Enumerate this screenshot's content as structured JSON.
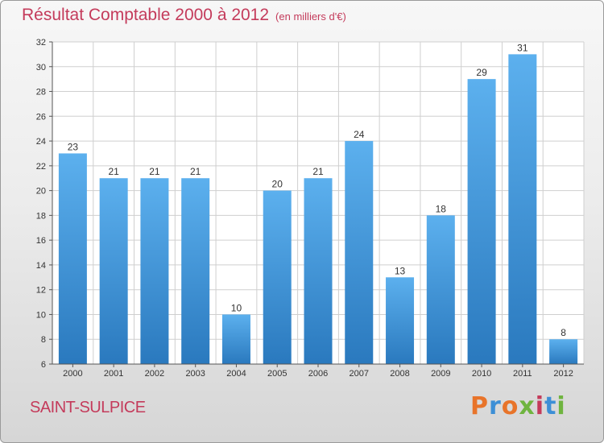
{
  "header": {
    "title": "Résultat Comptable 2000 à 2012",
    "subtitle": "(en milliers d'€)"
  },
  "footer": {
    "commune": "SAINT-SULPICE",
    "logo_text": "Proxiti",
    "logo_colors": [
      "#e8742a",
      "#3d8fd6",
      "#e8742a",
      "#6fb43f",
      "#c43b5b",
      "#3d8fd6",
      "#6fb43f"
    ]
  },
  "colors": {
    "bar_top": "#5cb0ee",
    "bar_bottom": "#2a79be",
    "title": "#c43b5b",
    "axis": "#555555",
    "grid": "#cfcfcf"
  },
  "chart_data": {
    "type": "bar",
    "categories": [
      "2000",
      "2001",
      "2002",
      "2003",
      "2004",
      "2005",
      "2006",
      "2007",
      "2008",
      "2009",
      "2010",
      "2011",
      "2012"
    ],
    "values": [
      23,
      21,
      21,
      21,
      10,
      20,
      21,
      24,
      13,
      18,
      29,
      31,
      8
    ],
    "ylim": [
      6,
      32
    ],
    "yticks": [
      6,
      8,
      10,
      12,
      14,
      16,
      18,
      20,
      22,
      24,
      26,
      28,
      30,
      32
    ],
    "grid": true,
    "data_labels": true
  }
}
